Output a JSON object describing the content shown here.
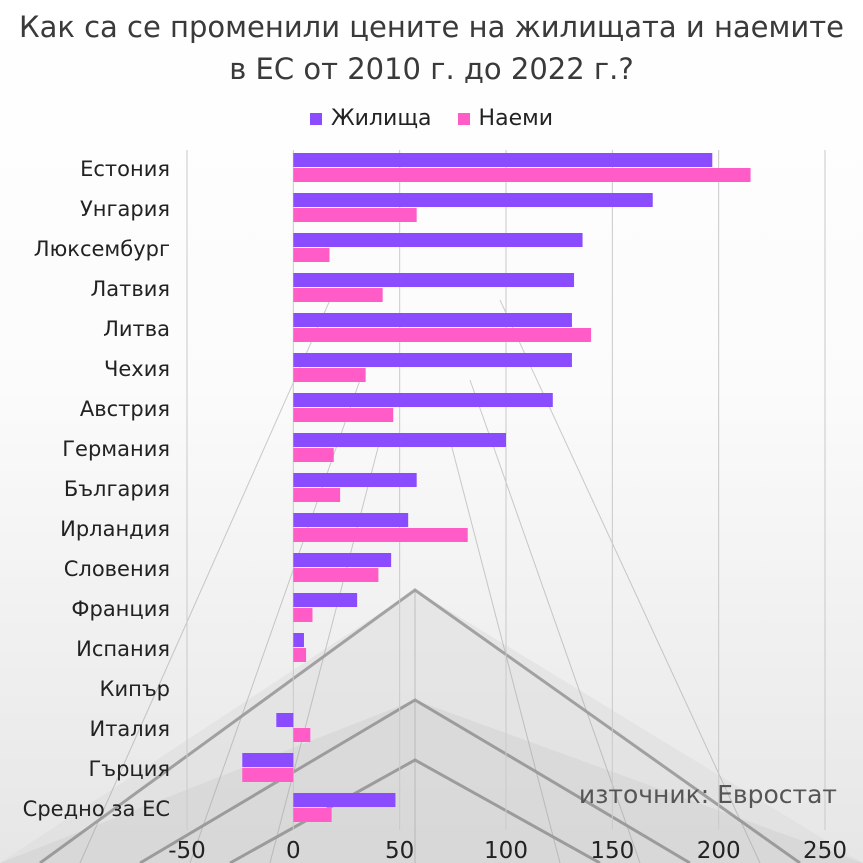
{
  "title_line1": "Как са се променили цените на жилищата и наемите",
  "title_line2": "в ЕС от 2010 г. до 2022 г.?",
  "source_note": "източник: Евростат",
  "colors": {
    "housing": "#8b4cff",
    "rents": "#ff5cc8"
  },
  "chart_data": {
    "type": "bar",
    "orientation": "horizontal",
    "categories": [
      "Естония",
      "Унгария",
      "Люксембург",
      "Латвия",
      "Литва",
      "Чехия",
      "Австрия",
      "Германия",
      "България",
      "Ирландия",
      "Словения",
      "Франция",
      "Испания",
      "Кипър",
      "Италия",
      "Гърция",
      "Средно за ЕС"
    ],
    "series": [
      {
        "name": "Жилища",
        "values": [
          197,
          169,
          136,
          132,
          131,
          131,
          122,
          100,
          58,
          54,
          46,
          30,
          5,
          0,
          -8,
          -24,
          48
        ]
      },
      {
        "name": "Наеми",
        "values": [
          215,
          58,
          17,
          42,
          140,
          34,
          47,
          19,
          22,
          82,
          40,
          9,
          6,
          0,
          8,
          -24,
          18
        ]
      }
    ],
    "xlim": [
      -50,
      250
    ],
    "xticks": [
      "-50",
      "0",
      "50",
      "100",
      "150",
      "200",
      "250"
    ],
    "grid": true,
    "legend": "top-center"
  }
}
